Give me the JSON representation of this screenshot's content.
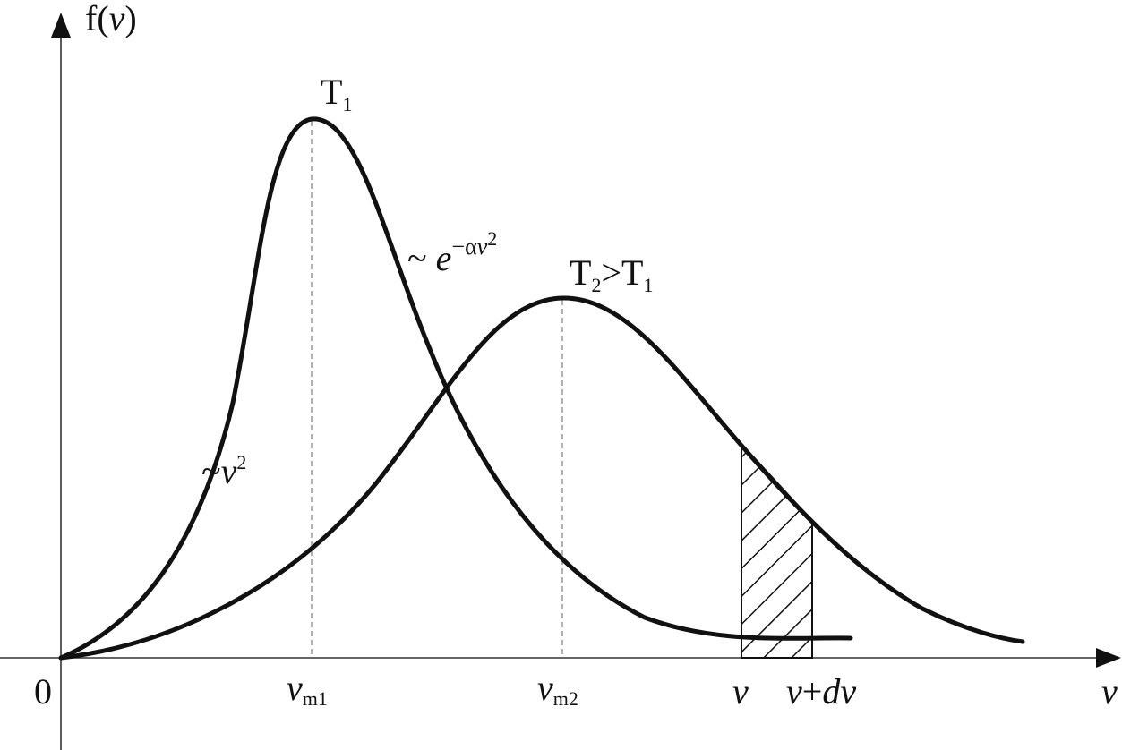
{
  "axes": {
    "y_label": [
      "f(",
      "v",
      ")"
    ],
    "x_label": "v",
    "origin": "0"
  },
  "curves": [
    {
      "label": [
        "T",
        "1"
      ]
    },
    {
      "label": [
        "T",
        "2",
        ">T",
        "1"
      ]
    }
  ],
  "annotations": {
    "low_speed": [
      "~",
      "v",
      "2"
    ],
    "high_speed": [
      "~ ",
      "e",
      "−α",
      "v",
      "2"
    ]
  },
  "ticks": [
    [
      "v",
      "m1"
    ],
    [
      "v",
      "m2"
    ],
    [
      "v"
    ],
    [
      "v",
      "+",
      "d",
      "v"
    ]
  ]
}
